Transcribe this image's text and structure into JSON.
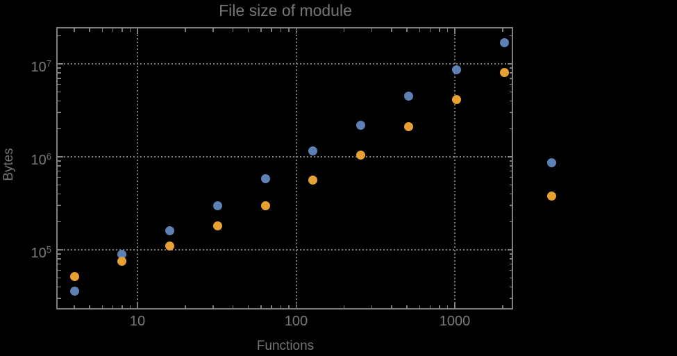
{
  "chart_data": {
    "type": "scatter",
    "title": "File size of module",
    "xlabel": "Functions",
    "ylabel": "Bytes",
    "xscale": "log",
    "yscale": "log",
    "xlim": [
      3.107,
      2355
    ],
    "ylim": [
      22800,
      24440000
    ],
    "grid": "dotted gray lines at powers of 10, both axes",
    "legend_position": "none",
    "x_major_ticks": [
      10,
      100,
      1000
    ],
    "x_tick_labels": [
      "10",
      "100",
      "1000"
    ],
    "y_major_ticks": [
      100000,
      1000000,
      10000000
    ],
    "y_tick_labels": [
      "10^5",
      "10^6",
      "10^7"
    ],
    "x": [
      4,
      8,
      16,
      32,
      64,
      128,
      256,
      512,
      1024,
      2048,
      4096
    ],
    "series": [
      {
        "name": "blue-series",
        "color": "#5E81B5",
        "values": [
          36000,
          89000,
          160000,
          300000,
          580000,
          1150000,
          2200000,
          4500000,
          8700000,
          17000000,
          870000
        ]
      },
      {
        "name": "orange-series",
        "color": "#E7A133",
        "values": [
          52000,
          75000,
          110000,
          180000,
          300000,
          560000,
          1050000,
          2100000,
          4100000,
          8100000,
          380000
        ]
      }
    ]
  },
  "colors": {
    "background": "#000000",
    "frame": "#7f7f7f",
    "grid": "#7c7c7c",
    "text": "#767676",
    "tick_text": "#7a7a7a"
  }
}
